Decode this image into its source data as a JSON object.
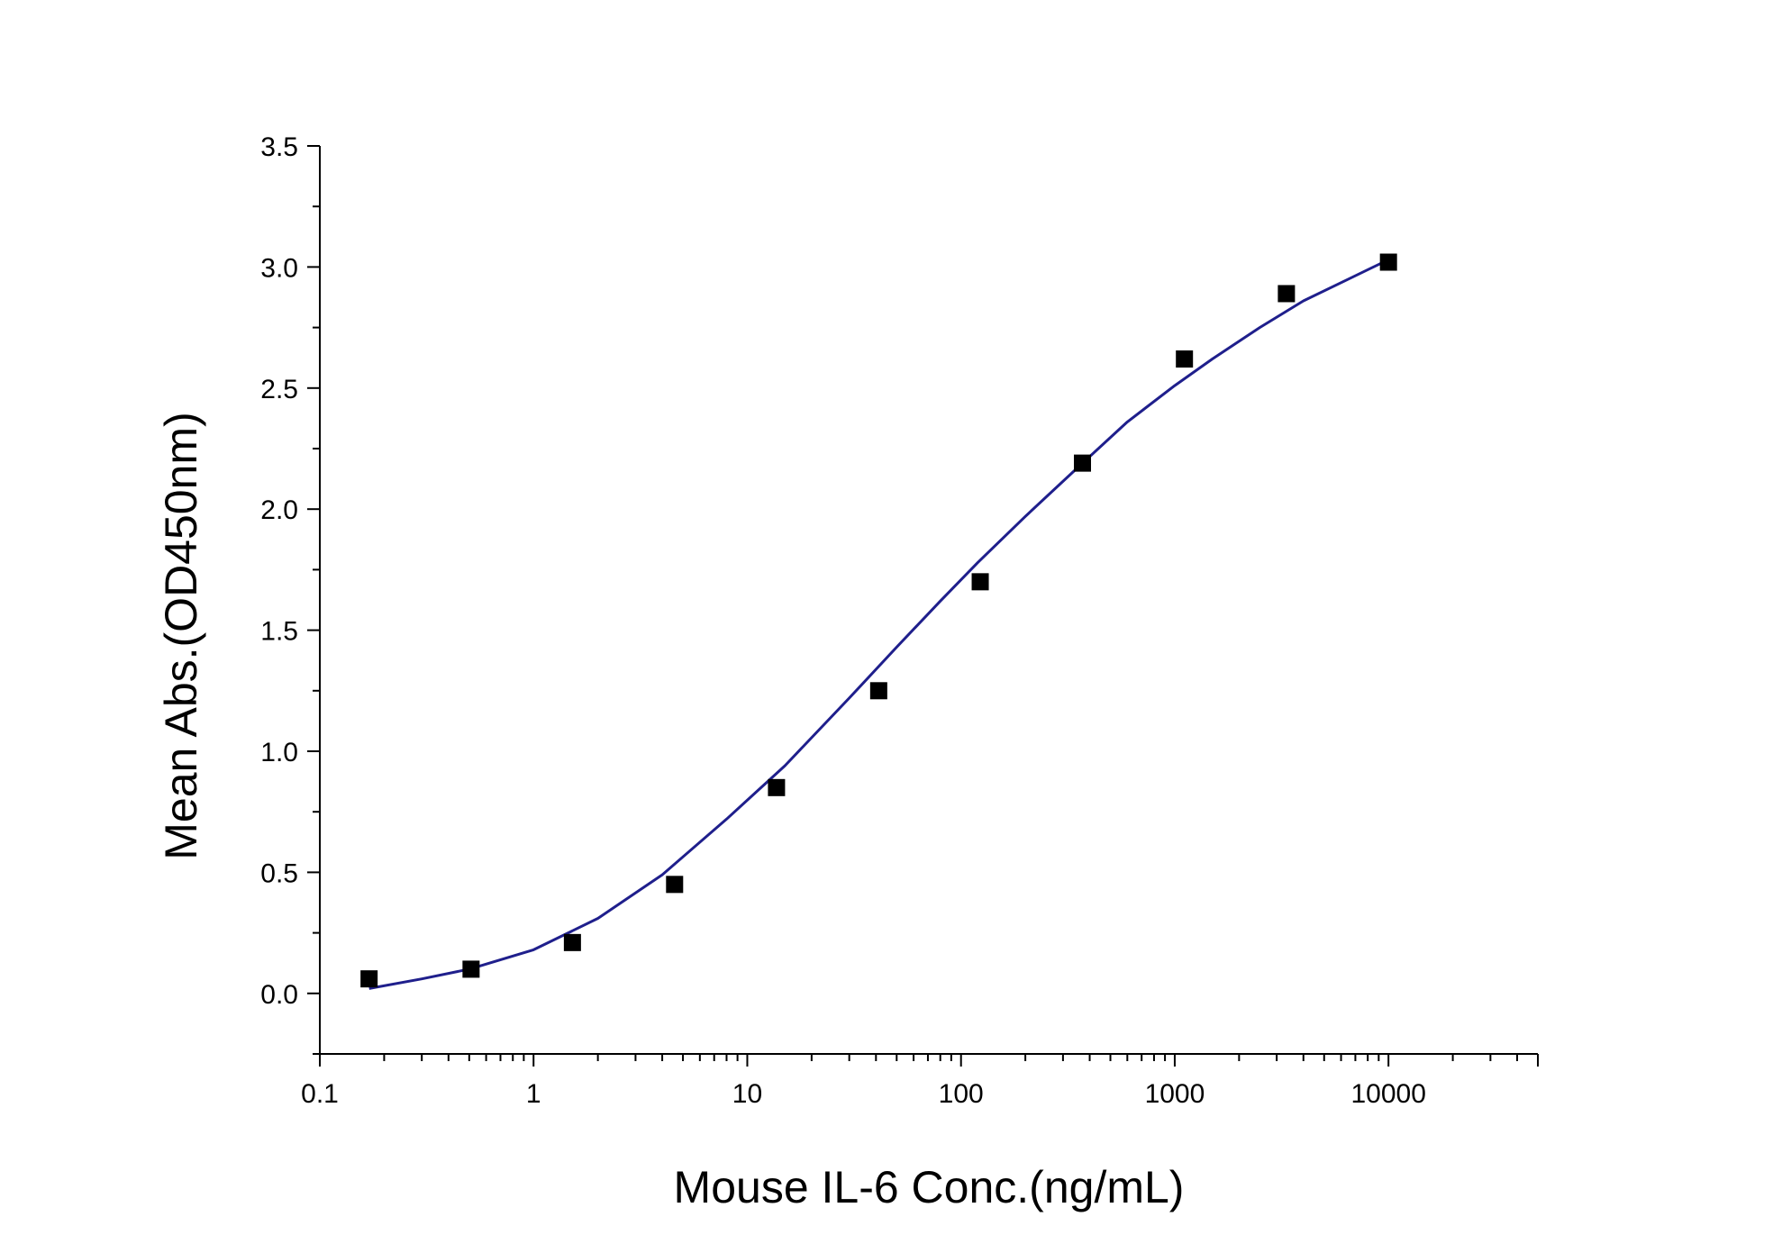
{
  "chart_data": {
    "type": "scatter",
    "title": "",
    "xlabel": "Mouse IL-6 Conc.(ng/mL)",
    "ylabel": "Mean Abs.(OD450nm)",
    "xscale": "log",
    "xlim": [
      0.1,
      50000
    ],
    "ylim": [
      -0.25,
      3.5
    ],
    "xticks": [
      0.1,
      1,
      10,
      100,
      1000,
      10000
    ],
    "xtick_labels": [
      "0.1",
      "1",
      "10",
      "100",
      "1000",
      "10000"
    ],
    "yticks": [
      0.0,
      0.5,
      1.0,
      1.5,
      2.0,
      2.5,
      3.0,
      3.5
    ],
    "ytick_labels": [
      "0.0",
      "0.5",
      "1.0",
      "1.5",
      "2.0",
      "2.5",
      "3.0",
      "3.5"
    ],
    "grid": false,
    "legend": "none",
    "series": [
      {
        "kind": "points",
        "marker": "square",
        "color": "#000000",
        "x": [
          0.17,
          0.51,
          1.52,
          4.57,
          13.7,
          41.2,
          123,
          370,
          1110,
          3330,
          10000
        ],
        "y": [
          0.06,
          0.1,
          0.21,
          0.45,
          0.85,
          1.25,
          1.7,
          2.19,
          2.62,
          2.89,
          3.02
        ]
      },
      {
        "kind": "fit-curve",
        "color": "#1f1f8c",
        "x": [
          0.17,
          0.3,
          0.5,
          1,
          2,
          4,
          8,
          15,
          30,
          50,
          80,
          120,
          200,
          350,
          600,
          1000,
          1500,
          2500,
          4000,
          6500,
          10000
        ],
        "y": [
          0.02,
          0.06,
          0.1,
          0.18,
          0.31,
          0.49,
          0.72,
          0.94,
          1.22,
          1.43,
          1.62,
          1.78,
          1.97,
          2.17,
          2.36,
          2.51,
          2.62,
          2.75,
          2.86,
          2.95,
          3.03
        ]
      }
    ]
  }
}
